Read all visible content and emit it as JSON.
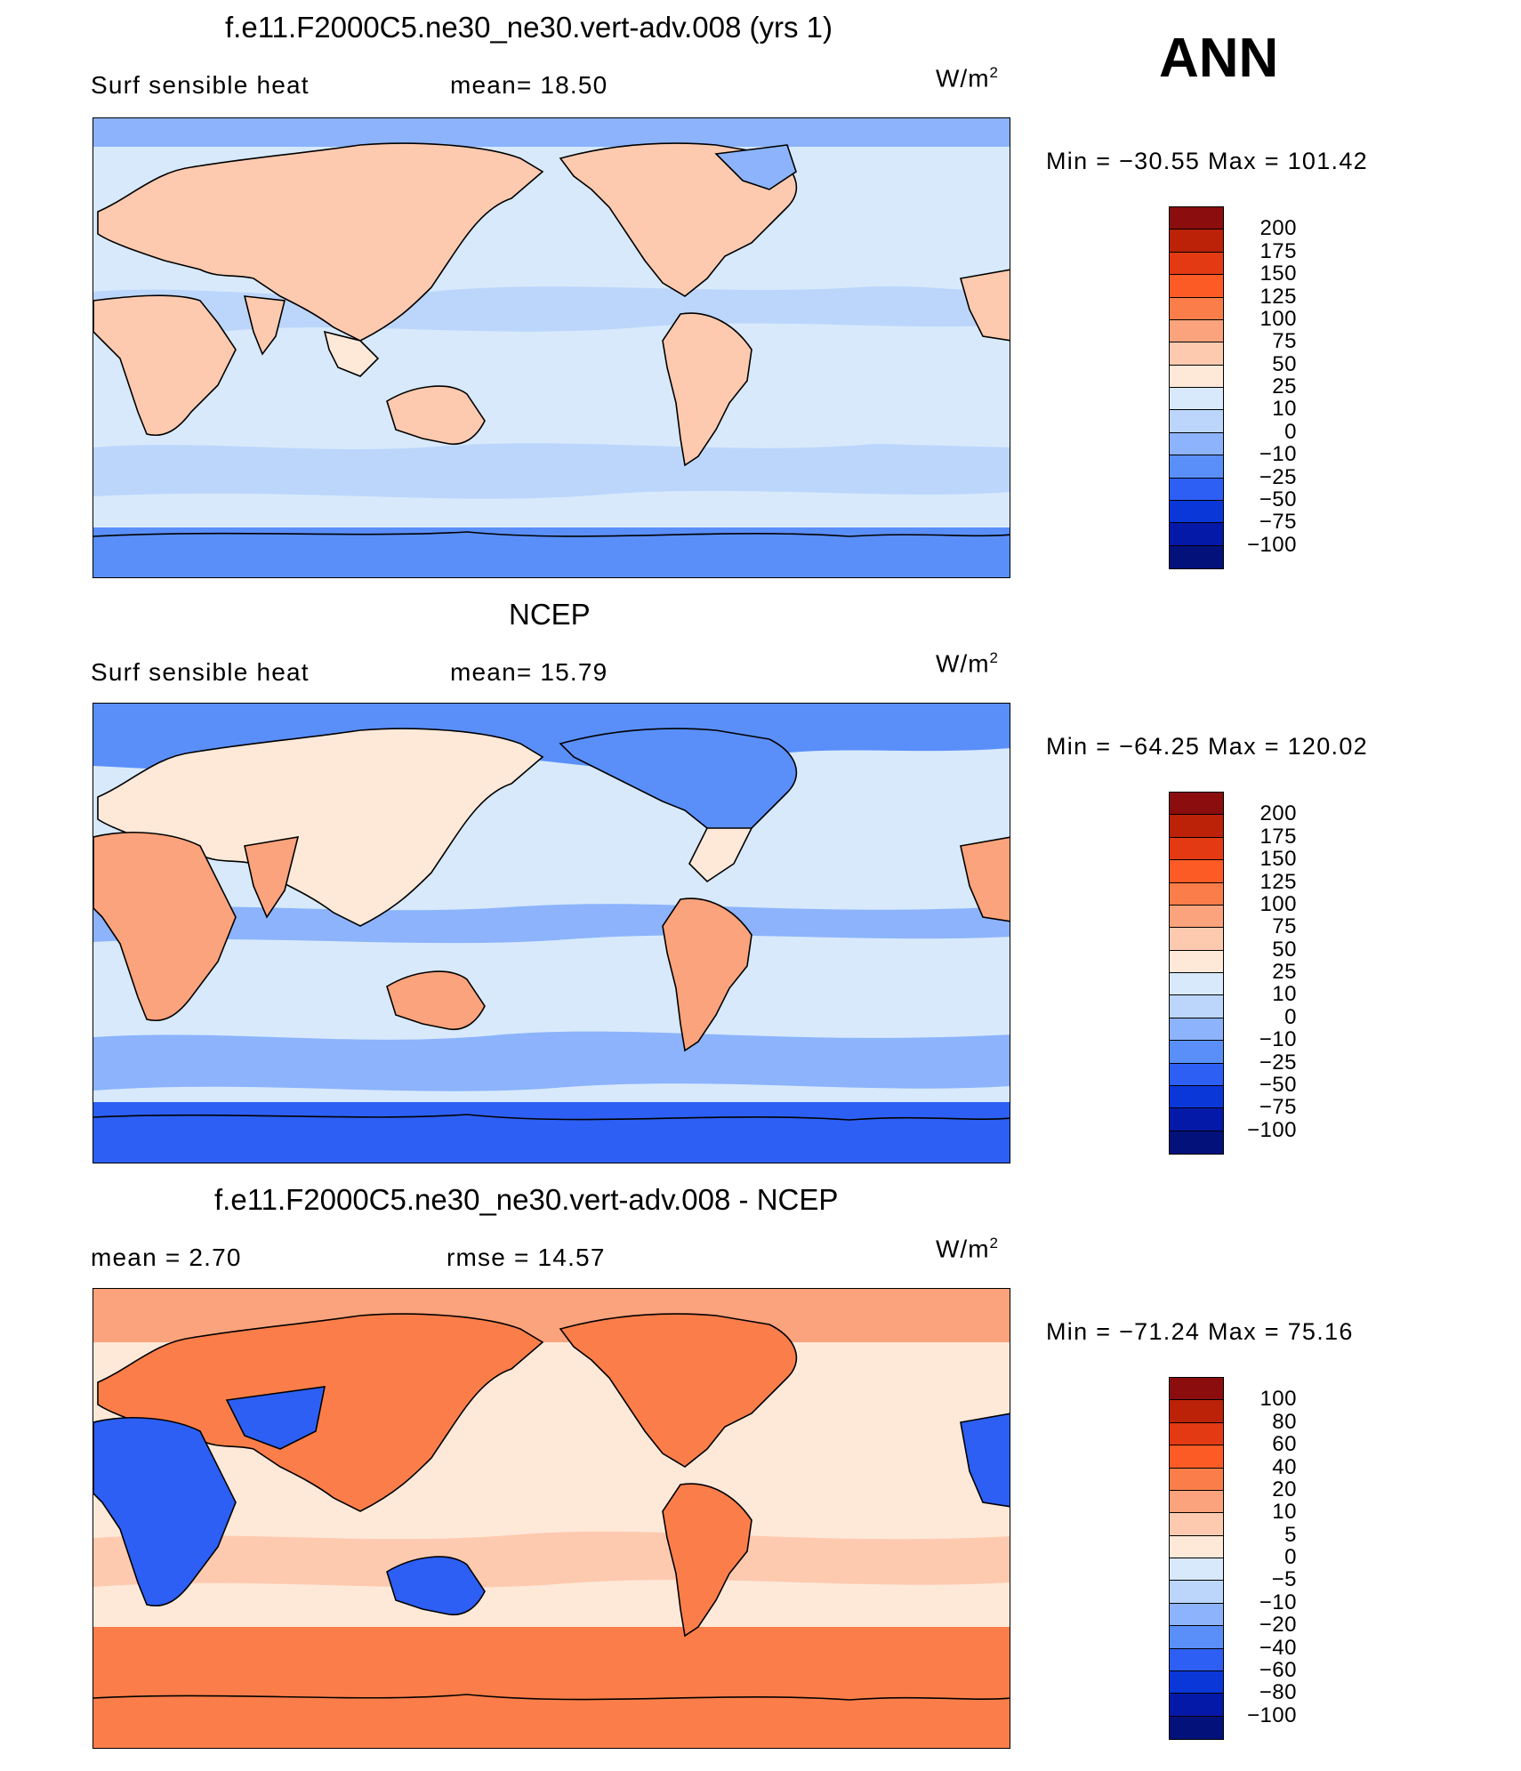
{
  "season": "ANN",
  "panels": [
    {
      "title": "f.e11.F2000C5.ne30_ne30.vert-adv.008 (yrs 1)",
      "left_label": "Surf  sensible  heat",
      "mid_label": "mean=   18.50",
      "units_base": "W/m",
      "units_exp": "2",
      "minmax": "Min  =  −30.55  Max  =  101.42",
      "levels": [
        "200",
        "175",
        "150",
        "125",
        "100",
        "75",
        "50",
        "25",
        "10",
        "0",
        "−10",
        "−25",
        "−50",
        "−75",
        "−100"
      ],
      "colors": [
        "#8b0d0d",
        "#bb2208",
        "#e33a14",
        "#fd5b25",
        "#fb7e4a",
        "#fba37c",
        "#fdcab0",
        "#fee9d9",
        "#d7e9fb",
        "#bcd6fb",
        "#8cb3fc",
        "#5a8ffa",
        "#2d5ff4",
        "#0a37d8",
        "#0519a8",
        "#03117a"
      ],
      "map_fill": {
        "ocean": "#d7e9fb",
        "land": "#fdcab0",
        "pole_north": "#8cb3fc",
        "pole_south": "#5a8ffa",
        "band": "#bcd6fb",
        "land2": "#fee9d9"
      }
    },
    {
      "title": "NCEP",
      "left_label": "Surf  sensible  heat",
      "mid_label": "mean=   15.79",
      "units_base": "W/m",
      "units_exp": "2",
      "minmax": "Min  =  −64.25  Max  =  120.02",
      "levels": [
        "200",
        "175",
        "150",
        "125",
        "100",
        "75",
        "50",
        "25",
        "10",
        "0",
        "−10",
        "−25",
        "−50",
        "−75",
        "−100"
      ],
      "colors": [
        "#8b0d0d",
        "#bb2208",
        "#e33a14",
        "#fd5b25",
        "#fb7e4a",
        "#fba37c",
        "#fdcab0",
        "#fee9d9",
        "#d7e9fb",
        "#bcd6fb",
        "#8cb3fc",
        "#5a8ffa",
        "#2d5ff4",
        "#0a37d8",
        "#0519a8",
        "#03117a"
      ],
      "map_fill": {
        "ocean": "#d7e9fb",
        "land": "#fba37c",
        "pole_north": "#5a8ffa",
        "pole_south": "#2d5ff4",
        "band": "#8cb3fc",
        "land2": "#fee9d9"
      }
    },
    {
      "title": "f.e11.F2000C5.ne30_ne30.vert-adv.008 - NCEP",
      "left_label": "mean  =     2.70",
      "mid_label": "rmse  =    14.57",
      "units_base": "W/m",
      "units_exp": "2",
      "minmax": "Min  =  −71.24  Max  =    75.16",
      "levels": [
        "100",
        "80",
        "60",
        "40",
        "20",
        "10",
        "5",
        "0",
        "−5",
        "−10",
        "−20",
        "−40",
        "−60",
        "−80",
        "−100"
      ],
      "colors": [
        "#8b0d0d",
        "#bb2208",
        "#e33a14",
        "#fd5b25",
        "#fb7e4a",
        "#fba37c",
        "#fdcab0",
        "#fee9d9",
        "#d7e9fb",
        "#bcd6fb",
        "#8cb3fc",
        "#5a8ffa",
        "#2d5ff4",
        "#0a37d8",
        "#0519a8",
        "#03117a"
      ],
      "map_fill": {
        "ocean": "#fee9d9",
        "land": "#fb7e4a",
        "pole_north": "#fba37c",
        "pole_south": "#fb7e4a",
        "band": "#fdcab0",
        "land2": "#2d5ff4"
      }
    }
  ]
}
